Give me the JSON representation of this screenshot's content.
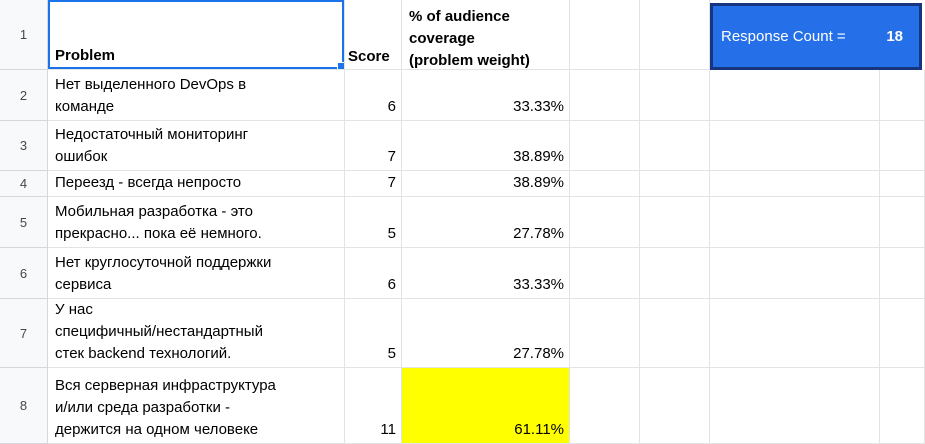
{
  "colors": {
    "selection_blue": "#1a73e8",
    "highlight_yellow": "#ffff00",
    "response_box_fill": "#2570e8",
    "response_box_border": "#17357f",
    "gutter_background": "#f8f9fa",
    "gridline": "#e2e3e3"
  },
  "gutter_rows": [
    "1",
    "2",
    "3",
    "4",
    "5",
    "6",
    "7",
    "8"
  ],
  "headers": {
    "problem": "Problem",
    "score": "Score",
    "coverage": "% of audience\ncoverage\n(problem weight)"
  },
  "response_count": {
    "label": "Response Count =",
    "value": "18"
  },
  "rows": [
    {
      "problem": "Нет выделенного DevOps в\nкоманде",
      "score": "6",
      "coverage": "33.33%"
    },
    {
      "problem": "Недостаточный мониторинг\nошибок",
      "score": "7",
      "coverage": "38.89%"
    },
    {
      "problem": "Переезд - всегда непросто",
      "score": "7",
      "coverage": "38.89%"
    },
    {
      "problem": "Мобильная разработка - это\nпрекрасно... пока её немного.",
      "score": "5",
      "coverage": "27.78%"
    },
    {
      "problem": "Нет круглосуточной поддержки\nсервиса",
      "score": "6",
      "coverage": "33.33%"
    },
    {
      "problem": "У нас\nспецифичный/нестандартный\nстек backend технологий.",
      "score": "5",
      "coverage": "27.78%"
    },
    {
      "problem": "Вся серверная инфраструктура\nи/или среда разработки -\nдержится на одном человеке",
      "score": "11",
      "coverage": "61.11%"
    }
  ]
}
